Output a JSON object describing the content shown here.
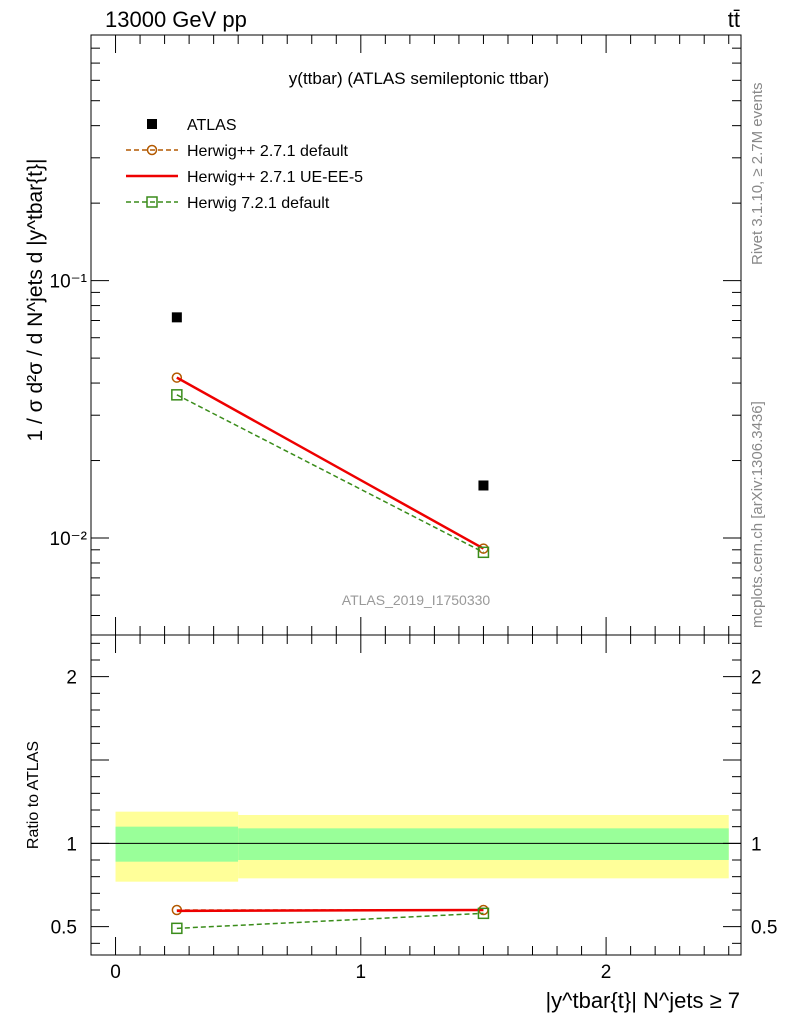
{
  "header": {
    "energy_label": "13000 GeV pp",
    "process_label": "tt̄"
  },
  "side_labels": {
    "rivet": "Rivet 3.1.10, ≥ 2.7M events",
    "mcplots": "mcplots.cern.ch [arXiv:1306.3436]"
  },
  "chart_data": [
    {
      "type": "scatter",
      "title": "y(ttbar) (ATLAS semileptonic ttbar)",
      "analysis_label": "ATLAS_2019_I1750330",
      "ylabel": "1 / σ d²σ / d N^jets d |y^tbar{t}|",
      "yscale": "log",
      "xlim": [
        -0.1,
        2.55
      ],
      "ylim": [
        0.0042,
        0.9
      ],
      "y_ticks": [
        {
          "value": 0.1,
          "label": "10⁻¹"
        },
        {
          "value": 0.01,
          "label": "10⁻²"
        }
      ],
      "legend_position": "top-left",
      "series": [
        {
          "name": "ATLAS",
          "color": "#000000",
          "marker": "filled-square",
          "x": [
            0.25,
            1.5
          ],
          "y": [
            0.072,
            0.016
          ]
        },
        {
          "name": "Herwig++ 2.7.1 default",
          "color": "#b35900",
          "marker": "open-circle",
          "dashed": true,
          "x": [
            0.25,
            1.5
          ],
          "y": [
            0.042,
            0.0091
          ]
        },
        {
          "name": "Herwig++ 2.7.1 UE-EE-5",
          "color": "#ee0000",
          "marker": "none",
          "dashed": false,
          "x": [
            0.25,
            1.5
          ],
          "y": [
            0.042,
            0.0091
          ]
        },
        {
          "name": "Herwig 7.2.1 default",
          "color": "#3a8c1a",
          "marker": "open-square",
          "dashed": true,
          "x": [
            0.25,
            1.5
          ],
          "y": [
            0.036,
            0.0088
          ]
        }
      ]
    },
    {
      "type": "line",
      "ylabel": "Ratio to ATLAS",
      "xlabel": "|y^tbar{t}| N^jets ≥ 7",
      "xlim": [
        -0.1,
        2.55
      ],
      "ylim": [
        0.33,
        2.25
      ],
      "x_ticks": [
        {
          "value": 0,
          "label": "0"
        },
        {
          "value": 1,
          "label": "1"
        },
        {
          "value": 2,
          "label": "2"
        }
      ],
      "y_ticks": [
        {
          "value": 0.5,
          "label": "0.5"
        },
        {
          "value": 1,
          "label": "1"
        },
        {
          "value": 2,
          "label": "2"
        }
      ],
      "bands": [
        {
          "x0": 0.0,
          "x1": 0.5,
          "outer": [
            0.77,
            1.19
          ],
          "inner": [
            0.89,
            1.1
          ]
        },
        {
          "x0": 0.5,
          "x1": 2.5,
          "outer": [
            0.79,
            1.17
          ],
          "inner": [
            0.9,
            1.09
          ]
        }
      ],
      "band_colors": {
        "outer": "#ffff99",
        "inner": "#99ff99"
      },
      "series": [
        {
          "name": "Herwig++ 2.7.1 default",
          "color": "#b35900",
          "marker": "open-circle",
          "dashed": true,
          "x": [
            0.25,
            1.5
          ],
          "y": [
            0.6,
            0.6
          ]
        },
        {
          "name": "Herwig++ 2.7.1 UE-EE-5",
          "color": "#ee0000",
          "marker": "none",
          "dashed": false,
          "x": [
            0.25,
            1.5
          ],
          "y": [
            0.595,
            0.6
          ]
        },
        {
          "name": "Herwig 7.2.1 default",
          "color": "#3a8c1a",
          "marker": "open-square",
          "dashed": true,
          "x": [
            0.25,
            1.5
          ],
          "y": [
            0.49,
            0.58
          ]
        }
      ]
    }
  ]
}
